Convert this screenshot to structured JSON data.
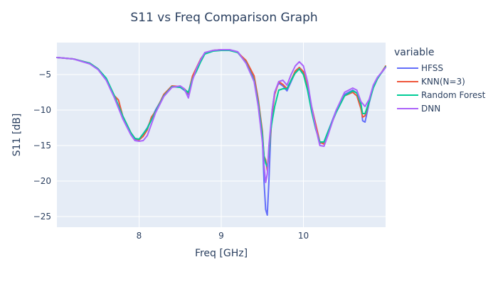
{
  "chart_data": {
    "type": "line",
    "title": "S11 vs Freq Comparison Graph",
    "xlabel": "Freq [GHz]",
    "ylabel": "S11 [dB]",
    "xlim": [
      7.0,
      11.0
    ],
    "ylim": [
      -26.5,
      -0.5
    ],
    "x_ticks": [
      8,
      9,
      10
    ],
    "y_ticks": [
      -5,
      -10,
      -15,
      -20,
      -25
    ],
    "grid": true,
    "legend_title": "variable",
    "legend_position": "right",
    "series": [
      {
        "name": "HFSS",
        "color": "#636efa",
        "x": [
          7.0,
          7.2,
          7.4,
          7.5,
          7.6,
          7.7,
          7.8,
          7.9,
          7.95,
          8.0,
          8.1,
          8.2,
          8.3,
          8.4,
          8.5,
          8.55,
          8.6,
          8.65,
          8.7,
          8.75,
          8.8,
          8.9,
          9.0,
          9.1,
          9.2,
          9.3,
          9.4,
          9.45,
          9.5,
          9.52,
          9.54,
          9.56,
          9.58,
          9.6,
          9.62,
          9.65,
          9.7,
          9.75,
          9.8,
          9.85,
          9.9,
          9.95,
          10.0,
          10.05,
          10.1,
          10.15,
          10.2,
          10.25,
          10.3,
          10.4,
          10.5,
          10.6,
          10.65,
          10.7,
          10.72,
          10.75,
          10.8,
          10.85,
          10.9,
          11.0
        ],
        "y": [
          -2.6,
          -2.8,
          -3.4,
          -4.2,
          -5.6,
          -8.2,
          -11.0,
          -13.3,
          -14.1,
          -14.2,
          -12.5,
          -10.0,
          -8.0,
          -6.7,
          -6.8,
          -7.2,
          -7.8,
          -5.5,
          -4.2,
          -3.0,
          -2.0,
          -1.6,
          -1.5,
          -1.5,
          -1.8,
          -3.2,
          -5.5,
          -9.0,
          -14.0,
          -20.0,
          -24.0,
          -24.8,
          -20.0,
          -14.0,
          -10.0,
          -7.5,
          -6.2,
          -6.6,
          -7.3,
          -6.0,
          -4.7,
          -4.0,
          -4.8,
          -7.0,
          -10.0,
          -12.5,
          -14.7,
          -14.5,
          -13.0,
          -10.0,
          -7.8,
          -7.2,
          -7.6,
          -9.0,
          -11.5,
          -11.7,
          -9.0,
          -6.8,
          -5.5,
          -4.0
        ]
      },
      {
        "name": "KNN(N=3)",
        "color": "#ef553b",
        "x": [
          7.0,
          7.2,
          7.4,
          7.5,
          7.6,
          7.7,
          7.75,
          7.8,
          7.9,
          7.95,
          8.0,
          8.05,
          8.1,
          8.15,
          8.2,
          8.3,
          8.4,
          8.5,
          8.55,
          8.6,
          8.65,
          8.7,
          8.75,
          8.8,
          8.9,
          9.0,
          9.1,
          9.2,
          9.3,
          9.4,
          9.45,
          9.5,
          9.52,
          9.54,
          9.56,
          9.58,
          9.6,
          9.62,
          9.65,
          9.7,
          9.75,
          9.8,
          9.85,
          9.9,
          9.95,
          10.0,
          10.05,
          10.1,
          10.15,
          10.2,
          10.25,
          10.3,
          10.4,
          10.5,
          10.6,
          10.65,
          10.7,
          10.72,
          10.75,
          10.8,
          10.85,
          10.9,
          11.0
        ],
        "y": [
          -2.6,
          -2.8,
          -3.4,
          -4.2,
          -5.6,
          -8.0,
          -8.6,
          -10.8,
          -13.2,
          -14.0,
          -14.2,
          -13.7,
          -12.8,
          -11.0,
          -10.2,
          -7.8,
          -6.6,
          -6.7,
          -7.0,
          -7.6,
          -5.2,
          -4.0,
          -2.8,
          -2.0,
          -1.6,
          -1.5,
          -1.5,
          -1.9,
          -3.0,
          -5.2,
          -8.5,
          -13.0,
          -16.5,
          -17.0,
          -18.5,
          -16.0,
          -13.5,
          -10.5,
          -7.8,
          -6.0,
          -6.4,
          -7.0,
          -5.8,
          -4.5,
          -4.0,
          -4.6,
          -6.8,
          -9.5,
          -12.0,
          -14.5,
          -14.8,
          -13.2,
          -10.2,
          -8.0,
          -7.5,
          -8.0,
          -9.8,
          -11.0,
          -10.8,
          -8.8,
          -6.8,
          -5.6,
          -3.8
        ]
      },
      {
        "name": "Random Forest",
        "color": "#00cc96",
        "x": [
          7.0,
          7.2,
          7.4,
          7.5,
          7.6,
          7.7,
          7.8,
          7.9,
          7.95,
          8.0,
          8.1,
          8.2,
          8.3,
          8.4,
          8.5,
          8.55,
          8.6,
          8.65,
          8.7,
          8.75,
          8.8,
          8.9,
          9.0,
          9.1,
          9.2,
          9.3,
          9.4,
          9.45,
          9.5,
          9.52,
          9.54,
          9.56,
          9.58,
          9.6,
          9.62,
          9.65,
          9.7,
          9.75,
          9.8,
          9.85,
          9.9,
          9.95,
          10.0,
          10.05,
          10.1,
          10.15,
          10.2,
          10.25,
          10.3,
          10.4,
          10.5,
          10.6,
          10.65,
          10.7,
          10.72,
          10.75,
          10.8,
          10.85,
          10.9,
          11.0
        ],
        "y": [
          -2.6,
          -2.8,
          -3.4,
          -4.2,
          -5.5,
          -8.0,
          -10.8,
          -13.2,
          -14.0,
          -14.1,
          -12.6,
          -10.2,
          -8.0,
          -6.7,
          -6.8,
          -7.1,
          -7.5,
          -5.6,
          -4.5,
          -3.2,
          -2.1,
          -1.7,
          -1.6,
          -1.6,
          -1.9,
          -3.3,
          -5.8,
          -9.0,
          -13.5,
          -16.5,
          -17.5,
          -18.0,
          -16.0,
          -13.0,
          -11.5,
          -9.5,
          -7.2,
          -7.0,
          -7.0,
          -5.8,
          -4.8,
          -4.2,
          -5.0,
          -7.2,
          -10.2,
          -12.7,
          -14.5,
          -14.5,
          -13.0,
          -10.3,
          -8.0,
          -7.3,
          -7.6,
          -9.2,
          -10.5,
          -10.5,
          -8.8,
          -6.9,
          -5.6,
          -3.9
        ]
      },
      {
        "name": "DNN",
        "color": "#ab63fa",
        "x": [
          7.0,
          7.2,
          7.4,
          7.5,
          7.6,
          7.7,
          7.8,
          7.9,
          7.95,
          8.0,
          8.05,
          8.1,
          8.2,
          8.3,
          8.4,
          8.5,
          8.55,
          8.6,
          8.65,
          8.7,
          8.75,
          8.8,
          8.9,
          9.0,
          9.1,
          9.2,
          9.3,
          9.4,
          9.45,
          9.5,
          9.52,
          9.54,
          9.56,
          9.58,
          9.6,
          9.62,
          9.65,
          9.7,
          9.75,
          9.8,
          9.85,
          9.9,
          9.95,
          10.0,
          10.05,
          10.1,
          10.15,
          10.2,
          10.25,
          10.3,
          10.4,
          10.5,
          10.6,
          10.65,
          10.7,
          10.75,
          10.8,
          10.85,
          10.9,
          11.0
        ],
        "y": [
          -2.6,
          -2.8,
          -3.5,
          -4.3,
          -5.8,
          -8.3,
          -11.2,
          -13.5,
          -14.3,
          -14.4,
          -14.3,
          -13.6,
          -10.4,
          -8.1,
          -6.8,
          -6.6,
          -7.0,
          -8.3,
          -5.8,
          -4.1,
          -2.9,
          -1.9,
          -1.6,
          -1.5,
          -1.5,
          -1.8,
          -3.4,
          -6.0,
          -9.5,
          -14.5,
          -17.8,
          -20.2,
          -19.0,
          -15.0,
          -12.5,
          -10.0,
          -7.5,
          -6.0,
          -5.8,
          -6.5,
          -5.0,
          -3.8,
          -3.2,
          -3.8,
          -6.0,
          -9.5,
          -12.5,
          -15.0,
          -15.1,
          -13.5,
          -10.0,
          -7.5,
          -6.9,
          -7.2,
          -8.8,
          -9.5,
          -8.5,
          -6.5,
          -5.4,
          -4.0
        ]
      }
    ]
  }
}
